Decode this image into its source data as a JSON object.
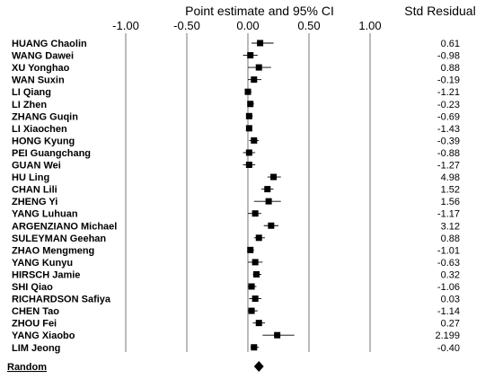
{
  "chart_data": {
    "type": "forest",
    "title": "Point estimate and 95% CI",
    "right_header": "Std Residual",
    "x_ticks": [
      -1.0,
      -0.5,
      0.0,
      0.5,
      1.0
    ],
    "x_tick_labels": [
      "-1.00",
      "-0.50",
      "0.00",
      "0.50",
      "1.00"
    ],
    "xlim": [
      -1.0,
      1.0
    ],
    "grid": "vertical lines at ticks",
    "studies": [
      {
        "name": "HUANG Chaolin",
        "estimate": 0.1,
        "lower": 0.03,
        "upper": 0.21,
        "std_residual": "0.61"
      },
      {
        "name": "WANG Dawei",
        "estimate": 0.02,
        "lower": -0.04,
        "upper": 0.08,
        "std_residual": "-0.98"
      },
      {
        "name": "XU Yonghao",
        "estimate": 0.09,
        "lower": 0.0,
        "upper": 0.19,
        "std_residual": "0.88"
      },
      {
        "name": "WAN Suxin",
        "estimate": 0.05,
        "lower": 0.0,
        "upper": 0.11,
        "std_residual": "-0.19"
      },
      {
        "name": "LI Qiang",
        "estimate": 0.0,
        "lower": -0.02,
        "upper": 0.03,
        "std_residual": "-1.21"
      },
      {
        "name": "LI Zhen",
        "estimate": 0.02,
        "lower": 0.0,
        "upper": 0.05,
        "std_residual": "-0.23"
      },
      {
        "name": "ZHANG Guqin",
        "estimate": 0.01,
        "lower": -0.01,
        "upper": 0.04,
        "std_residual": "-0.69"
      },
      {
        "name": "LI Xiaochen",
        "estimate": 0.01,
        "lower": -0.01,
        "upper": 0.03,
        "std_residual": "-1.43"
      },
      {
        "name": "HONG Kyung",
        "estimate": 0.05,
        "lower": 0.01,
        "upper": 0.09,
        "std_residual": "-0.39"
      },
      {
        "name": "PEI Guangchang",
        "estimate": 0.01,
        "lower": -0.04,
        "upper": 0.06,
        "std_residual": "-0.88"
      },
      {
        "name": "GUAN Wei",
        "estimate": 0.01,
        "lower": -0.04,
        "upper": 0.06,
        "std_residual": "-1.27"
      },
      {
        "name": "HU Ling",
        "estimate": 0.21,
        "lower": 0.16,
        "upper": 0.27,
        "std_residual": "4.98"
      },
      {
        "name": "CHAN Lili",
        "estimate": 0.16,
        "lower": 0.11,
        "upper": 0.21,
        "std_residual": "1.52"
      },
      {
        "name": "ZHENG Yi",
        "estimate": 0.17,
        "lower": 0.05,
        "upper": 0.27,
        "std_residual": "1.56"
      },
      {
        "name": "YANG Luhuan",
        "estimate": 0.06,
        "lower": 0.0,
        "upper": 0.11,
        "std_residual": "-1.17"
      },
      {
        "name": "ARGENZIANO Michael",
        "estimate": 0.19,
        "lower": 0.13,
        "upper": 0.25,
        "std_residual": "3.12"
      },
      {
        "name": "SULEYMAN Geehan",
        "estimate": 0.09,
        "lower": 0.05,
        "upper": 0.14,
        "std_residual": "0.88"
      },
      {
        "name": "ZHAO Mengmeng",
        "estimate": 0.02,
        "lower": 0.0,
        "upper": 0.05,
        "std_residual": "-1.01"
      },
      {
        "name": "YANG Kunyu",
        "estimate": 0.06,
        "lower": 0.0,
        "upper": 0.12,
        "std_residual": "-0.63"
      },
      {
        "name": "HIRSCH Jamie",
        "estimate": 0.07,
        "lower": 0.04,
        "upper": 0.11,
        "std_residual": "0.32"
      },
      {
        "name": "SHI Qiao",
        "estimate": 0.03,
        "lower": 0.0,
        "upper": 0.07,
        "std_residual": "-1.06"
      },
      {
        "name": "RICHARDSON Safiya",
        "estimate": 0.06,
        "lower": 0.01,
        "upper": 0.11,
        "std_residual": "0.03"
      },
      {
        "name": "CHEN Tao",
        "estimate": 0.03,
        "lower": 0.0,
        "upper": 0.08,
        "std_residual": "-1.14"
      },
      {
        "name": "ZHOU Fei",
        "estimate": 0.09,
        "lower": 0.04,
        "upper": 0.14,
        "std_residual": "0.27"
      },
      {
        "name": "YANG Xiaobo",
        "estimate": 0.24,
        "lower": 0.12,
        "upper": 0.38,
        "std_residual": "2.199"
      },
      {
        "name": "LIM Jeong",
        "estimate": 0.05,
        "lower": 0.02,
        "upper": 0.09,
        "std_residual": "-0.40"
      }
    ],
    "summary": {
      "label": "Random",
      "estimate": 0.09,
      "lower": 0.05,
      "upper": 0.13
    }
  }
}
